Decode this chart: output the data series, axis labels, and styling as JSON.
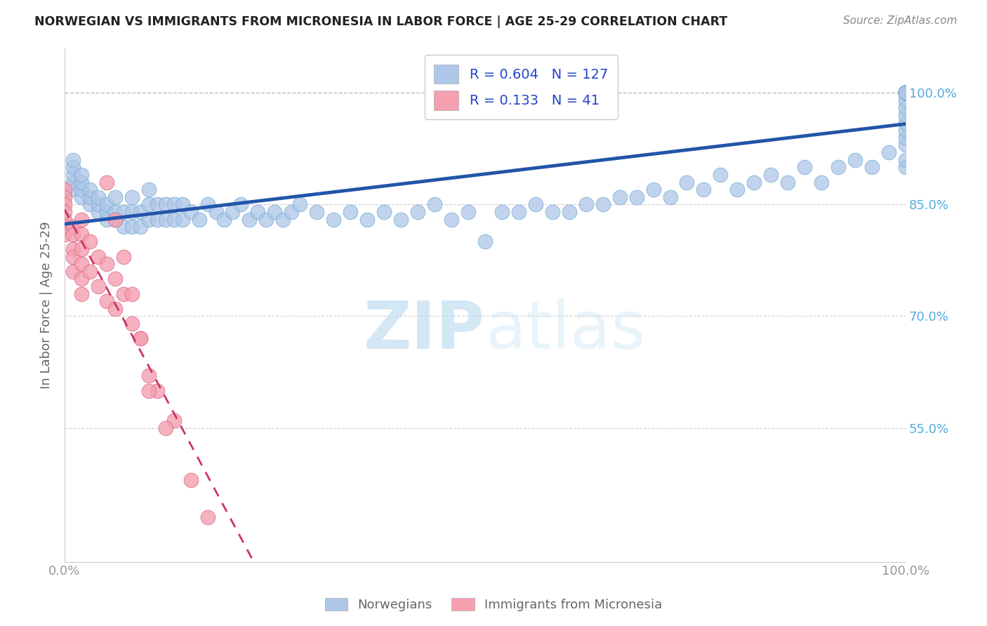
{
  "title": "NORWEGIAN VS IMMIGRANTS FROM MICRONESIA IN LABOR FORCE | AGE 25-29 CORRELATION CHART",
  "source": "Source: ZipAtlas.com",
  "ylabel": "In Labor Force | Age 25-29",
  "xlim": [
    0.0,
    1.0
  ],
  "ylim": [
    0.37,
    1.06
  ],
  "yticks": [
    0.55,
    0.7,
    0.85,
    1.0
  ],
  "ytick_labels": [
    "55.0%",
    "70.0%",
    "85.0%",
    "100.0%"
  ],
  "xticks": [
    0.0,
    1.0
  ],
  "xtick_labels": [
    "0.0%",
    "100.0%"
  ],
  "norwegian_color": "#aec6e8",
  "norwegian_edge_color": "#7bafd4",
  "micronesian_color": "#f4a0b0",
  "micronesian_edge_color": "#e07090",
  "norwegian_line_color": "#2255aa",
  "micronesian_line_color": "#cc3366",
  "watermark_zip": "ZIP",
  "watermark_atlas": "atlas",
  "legend_R_norwegian": "0.604",
  "legend_N_norwegian": "127",
  "legend_R_micronesian": "0.133",
  "legend_N_micronesian": "41",
  "background_color": "#ffffff",
  "grid_color": "#cccccc",
  "title_color": "#222222",
  "axis_label_color": "#666666",
  "ytick_color": "#55aadd",
  "xtick_color": "#999999",
  "source_color": "#888888",
  "legend_label_color": "#2244cc",
  "bottom_label_color": "#666666",
  "norw_x": [
    0.01,
    0.01,
    0.01,
    0.01,
    0.01,
    0.02,
    0.02,
    0.02,
    0.02,
    0.03,
    0.03,
    0.03,
    0.04,
    0.04,
    0.04,
    0.05,
    0.05,
    0.05,
    0.06,
    0.06,
    0.06,
    0.07,
    0.07,
    0.08,
    0.08,
    0.08,
    0.09,
    0.09,
    0.1,
    0.1,
    0.1,
    0.11,
    0.11,
    0.12,
    0.12,
    0.13,
    0.13,
    0.14,
    0.14,
    0.15,
    0.16,
    0.17,
    0.18,
    0.19,
    0.2,
    0.21,
    0.22,
    0.23,
    0.24,
    0.25,
    0.26,
    0.27,
    0.28,
    0.3,
    0.32,
    0.34,
    0.36,
    0.38,
    0.4,
    0.42,
    0.44,
    0.46,
    0.48,
    0.5,
    0.52,
    0.54,
    0.56,
    0.58,
    0.6,
    0.62,
    0.64,
    0.66,
    0.68,
    0.7,
    0.72,
    0.74,
    0.76,
    0.78,
    0.8,
    0.82,
    0.84,
    0.86,
    0.88,
    0.9,
    0.92,
    0.94,
    0.96,
    0.98,
    1.0,
    1.0,
    1.0,
    1.0,
    1.0,
    1.0,
    1.0,
    1.0,
    1.0,
    1.0,
    1.0,
    1.0,
    1.0,
    1.0,
    1.0,
    1.0,
    1.0,
    1.0,
    1.0,
    1.0,
    1.0,
    1.0,
    1.0,
    1.0,
    1.0,
    1.0,
    1.0,
    1.0,
    1.0,
    1.0,
    1.0,
    1.0,
    1.0,
    1.0,
    1.0,
    1.0,
    1.0,
    1.0,
    1.0
  ],
  "norw_y": [
    0.87,
    0.88,
    0.89,
    0.9,
    0.91,
    0.86,
    0.87,
    0.88,
    0.89,
    0.85,
    0.86,
    0.87,
    0.84,
    0.85,
    0.86,
    0.83,
    0.84,
    0.85,
    0.83,
    0.84,
    0.86,
    0.82,
    0.84,
    0.82,
    0.84,
    0.86,
    0.82,
    0.84,
    0.83,
    0.85,
    0.87,
    0.83,
    0.85,
    0.83,
    0.85,
    0.83,
    0.85,
    0.83,
    0.85,
    0.84,
    0.83,
    0.85,
    0.84,
    0.83,
    0.84,
    0.85,
    0.83,
    0.84,
    0.83,
    0.84,
    0.83,
    0.84,
    0.85,
    0.84,
    0.83,
    0.84,
    0.83,
    0.84,
    0.83,
    0.84,
    0.85,
    0.83,
    0.84,
    0.8,
    0.84,
    0.84,
    0.85,
    0.84,
    0.84,
    0.85,
    0.85,
    0.86,
    0.86,
    0.87,
    0.86,
    0.88,
    0.87,
    0.89,
    0.87,
    0.88,
    0.89,
    0.88,
    0.9,
    0.88,
    0.9,
    0.91,
    0.9,
    0.92,
    0.9,
    0.91,
    0.93,
    0.94,
    0.95,
    0.96,
    0.97,
    0.98,
    0.99,
    1.0,
    1.0,
    1.0,
    1.0,
    1.0,
    1.0,
    1.0,
    1.0,
    1.0,
    1.0,
    1.0,
    1.0,
    1.0,
    1.0,
    1.0,
    1.0,
    1.0,
    1.0,
    1.0,
    1.0,
    1.0,
    1.0,
    1.0,
    1.0,
    1.0,
    1.0,
    1.0,
    1.0,
    1.0,
    1.0
  ],
  "micro_x": [
    0.0,
    0.0,
    0.0,
    0.0,
    0.0,
    0.0,
    0.0,
    0.01,
    0.01,
    0.01,
    0.01,
    0.01,
    0.02,
    0.02,
    0.02,
    0.02,
    0.02,
    0.02,
    0.03,
    0.03,
    0.04,
    0.04,
    0.05,
    0.05,
    0.06,
    0.06,
    0.07,
    0.08,
    0.09,
    0.1,
    0.11,
    0.13,
    0.15,
    0.17,
    0.05,
    0.06,
    0.07,
    0.08,
    0.09,
    0.1,
    0.12
  ],
  "micro_y": [
    0.87,
    0.86,
    0.85,
    0.84,
    0.83,
    0.82,
    0.81,
    0.82,
    0.81,
    0.79,
    0.78,
    0.76,
    0.83,
    0.81,
    0.79,
    0.77,
    0.75,
    0.73,
    0.8,
    0.76,
    0.78,
    0.74,
    0.77,
    0.72,
    0.75,
    0.71,
    0.73,
    0.69,
    0.67,
    0.62,
    0.6,
    0.56,
    0.48,
    0.43,
    0.88,
    0.83,
    0.78,
    0.73,
    0.67,
    0.6,
    0.55
  ]
}
